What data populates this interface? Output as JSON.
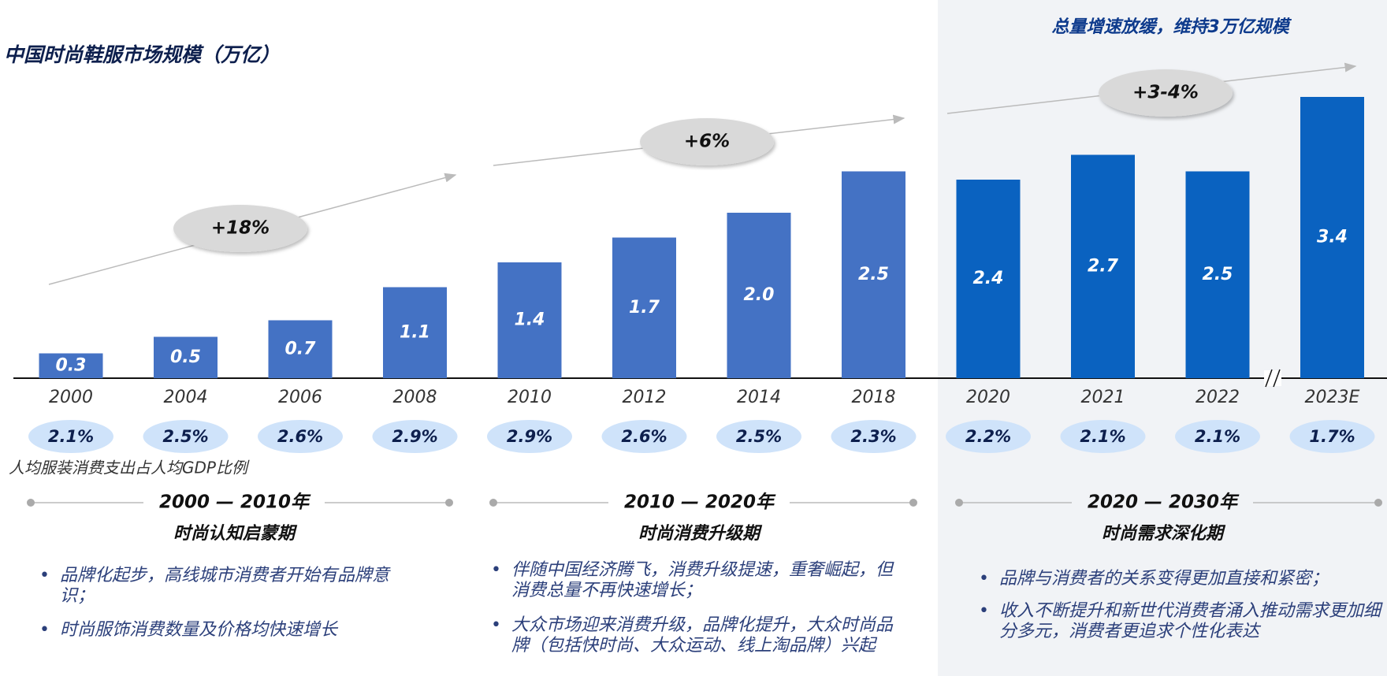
{
  "chart_data": {
    "type": "bar",
    "title": "中国时尚鞋服市场规模（万亿）",
    "subtitle": "总量增速放缓，维持3万亿规模",
    "categories": [
      "2000",
      "2004",
      "2006",
      "2008",
      "2010",
      "2012",
      "2014",
      "2018",
      "2020",
      "2021",
      "2022",
      "2023E"
    ],
    "values": [
      0.3,
      0.5,
      0.7,
      1.1,
      1.4,
      1.7,
      2.0,
      2.5,
      2.4,
      2.7,
      2.5,
      3.4
    ],
    "value_labels": [
      "0.3",
      "0.5",
      "0.7",
      "1.1",
      "1.4",
      "1.7",
      "2.0",
      "2.5",
      "2.4",
      "2.7",
      "2.5",
      "3.4"
    ],
    "colors": [
      "#4472c4",
      "#4472c4",
      "#4472c4",
      "#4472c4",
      "#4472c4",
      "#4472c4",
      "#4472c4",
      "#4472c4",
      "#0a62c0",
      "#0a62c0",
      "#0a62c0",
      "#0a62c0"
    ],
    "ratio": {
      "label": "人均服装消费支出占人均GDP比例",
      "values": [
        2.1,
        2.5,
        2.6,
        2.9,
        2.9,
        2.6,
        2.5,
        2.3,
        2.2,
        2.1,
        2.1,
        1.7
      ],
      "value_labels": [
        "2.1%",
        "2.5%",
        "2.6%",
        "2.9%",
        "2.9%",
        "2.6%",
        "2.5%",
        "2.3%",
        "2.2%",
        "2.1%",
        "2.1%",
        "1.7%"
      ]
    },
    "growth": [
      "+18%",
      "+6%",
      "+3-4%"
    ],
    "periods": [
      {
        "years": "2000 — 2010年",
        "name": "时尚认知启蒙期",
        "bullets": [
          "品牌化起步，高线城市消费者开始有品牌意识；",
          "时尚服饰消费数量及价格均快速增长"
        ]
      },
      {
        "years": "2010 — 2020年",
        "name": "时尚消费升级期",
        "bullets": [
          "伴随中国经济腾飞，消费升级提速，重奢崛起，但消费总量不再快速增长；",
          "大众市场迎来消费升级，品牌化提升，大众时尚品牌（包括快时尚、大众运动、线上淘品牌）兴起"
        ]
      },
      {
        "years": "2020 — 2030年",
        "name": "时尚需求深化期",
        "bullets": [
          "品牌与消费者的关系变得更加直接和紧密；",
          "收入不断提升和新世代消费者涌入推动需求更加细分多元，消费者更追求个性化表达"
        ]
      }
    ]
  }
}
